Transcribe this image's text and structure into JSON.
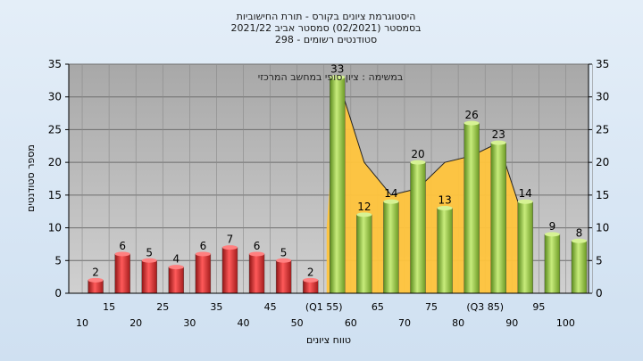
{
  "chart_data": {
    "type": "bar",
    "title_lines": [
      "היסטוגרמת ציונים בקורס - תורת החישוביות",
      "בסמסטר  (02/2021)  סמסטר אביב 2021/22",
      "סטודנטים רשומים - 298"
    ],
    "annotation": "במשימה : ציון סופי במחשב המרכזי",
    "xlabel": "טווח ציונים",
    "ylabel": "מספר סטודנטים",
    "ylim": [
      0,
      35
    ],
    "yticks": [
      0,
      5,
      10,
      15,
      20,
      25,
      30,
      35
    ],
    "grid": true,
    "categories_lower": [
      "10",
      "20",
      "30",
      "40",
      "50",
      "60",
      "70",
      "80",
      "90",
      "100"
    ],
    "categories_upper": [
      "15",
      "25",
      "35",
      "45",
      "(Q1 55)",
      "65",
      "75",
      "(Q3 85)",
      "95"
    ],
    "values": [
      2,
      6,
      5,
      4,
      6,
      7,
      6,
      5,
      2,
      33,
      12,
      14,
      20,
      13,
      26,
      23,
      14,
      9,
      8
    ],
    "bar_colors": [
      "red",
      "red",
      "red",
      "red",
      "red",
      "red",
      "red",
      "red",
      "red",
      "green",
      "green",
      "green",
      "green",
      "green",
      "green",
      "green",
      "green",
      "green",
      "green"
    ],
    "area_values": [
      33,
      20,
      15,
      16,
      20,
      21,
      23
    ],
    "area_start_index": 9,
    "colors": {
      "plot_bg": "#b9b9b9",
      "red_bar": "#d42a2a",
      "green_bar": "#8fbf3a",
      "area": "#ffc43c",
      "grid": "#6e6e6e"
    }
  }
}
